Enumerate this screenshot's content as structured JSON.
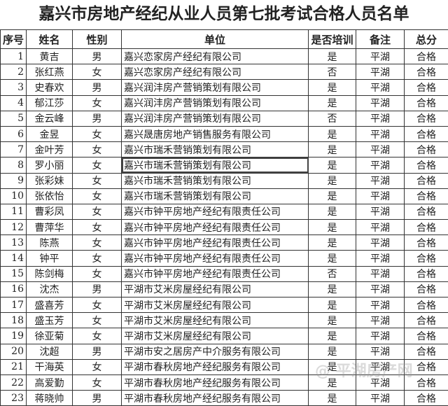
{
  "title": "嘉兴市房地产经纪从业人员第七批考试合格人员名单",
  "headers": [
    "序号",
    "姓名",
    "性别",
    "单位",
    "是否培训",
    "备注",
    "总分"
  ],
  "rows": [
    [
      "1",
      "黄吉",
      "男",
      "嘉兴恋家房产经纪有限公司",
      "是",
      "平湖",
      "合格"
    ],
    [
      "2",
      "张红燕",
      "女",
      "嘉兴恋家房产经纪有限公司",
      "否",
      "平湖",
      "合格"
    ],
    [
      "3",
      "史春欢",
      "男",
      "嘉兴润沣房产营销策划有限公司",
      "是",
      "平湖",
      "合格"
    ],
    [
      "4",
      "郁江莎",
      "女",
      "嘉兴润沣房产营销策划有限公司",
      "是",
      "平湖",
      "合格"
    ],
    [
      "5",
      "金云峰",
      "男",
      "嘉兴润沣房产营销策划有限公司",
      "否",
      "平湖",
      "合格"
    ],
    [
      "6",
      "金昱",
      "女",
      "嘉兴晟唐房地产销售服务有限公司",
      "是",
      "平湖",
      "合格"
    ],
    [
      "7",
      "金叶芳",
      "女",
      "嘉兴市瑞禾营销策划有限公司",
      "是",
      "平湖",
      "合格"
    ],
    [
      "8",
      "罗小丽",
      "女",
      "嘉兴市瑞禾营销策划有限公司",
      "是",
      "平湖",
      "合格"
    ],
    [
      "9",
      "张彩妹",
      "女",
      "嘉兴市瑞禾营销策划有限公司",
      "是",
      "平湖",
      "合格"
    ],
    [
      "10",
      "张依怡",
      "女",
      "嘉兴市瑞禾营销策划有限公司",
      "是",
      "平湖",
      "合格"
    ],
    [
      "11",
      "曹彩凤",
      "女",
      "嘉兴市钟平房地产经纪有限责任公司",
      "是",
      "平湖",
      "合格"
    ],
    [
      "12",
      "曹萍华",
      "女",
      "嘉兴市钟平房地产经纪有限责任公司",
      "是",
      "平湖",
      "合格"
    ],
    [
      "13",
      "陈燕",
      "女",
      "嘉兴市钟平房地产经纪有限责任公司",
      "是",
      "平湖",
      "合格"
    ],
    [
      "14",
      "钟平",
      "女",
      "嘉兴市钟平房地产经纪有限责任公司",
      "是",
      "平湖",
      "合格"
    ],
    [
      "15",
      "陈剑梅",
      "女",
      "嘉兴市钟平房地产经纪有限责任公司",
      "否",
      "平湖",
      "合格"
    ],
    [
      "16",
      "沈杰",
      "男",
      "平湖市艾米房屋经纪有限公司",
      "是",
      "平湖",
      "合格"
    ],
    [
      "17",
      "盛喜芳",
      "女",
      "平湖市艾米房屋经纪有限公司",
      "是",
      "平湖",
      "合格"
    ],
    [
      "18",
      "盛玉芳",
      "女",
      "平湖市艾米房屋经纪有限公司",
      "是",
      "平湖",
      "合格"
    ],
    [
      "19",
      "徐亚菊",
      "女",
      "平湖市艾米房屋经纪有限公司",
      "是",
      "平湖",
      "合格"
    ],
    [
      "20",
      "沈超",
      "男",
      "平湖市安之居房产中介服务有限公司",
      "是",
      "平湖",
      "合格"
    ],
    [
      "21",
      "干海英",
      "女",
      "平湖市春秋房地产经纪服务有限公司",
      "是",
      "平湖",
      "合格"
    ],
    [
      "22",
      "高爱勤",
      "女",
      "平湖市春秋房地产经纪服务有限公司",
      "是",
      "平湖",
      "合格"
    ],
    [
      "23",
      "蒋晓帅",
      "男",
      "平湖市春秋房地产经纪服务有限公司",
      "是",
      "平湖",
      "合格"
    ]
  ],
  "selected_cell": {
    "row": 8,
    "column": "单位"
  },
  "watermark": "平湖房产网"
}
